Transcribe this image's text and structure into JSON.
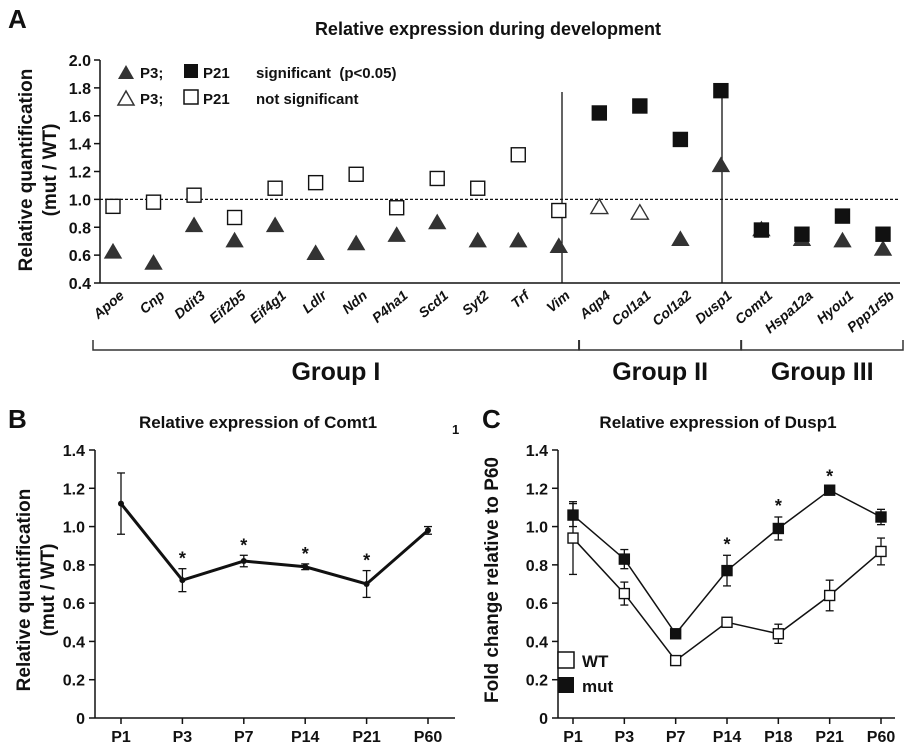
{
  "chart_data": [
    {
      "panel": "A",
      "type": "scatter",
      "title": "Relative expression during development",
      "ylabel_line1": "Relative quantification",
      "ylabel_line2": "(mut / WT)",
      "ylim": [
        0.4,
        2.0
      ],
      "yticks": [
        "0.4",
        "0.6",
        "0.8",
        "1.0",
        "1.2",
        "1.4",
        "1.6",
        "1.8",
        "2.0"
      ],
      "reference_line": 1.0,
      "legend": {
        "row1": {
          "p3": "P3;",
          "p21": "P21",
          "note": "significant  (p<0.05)"
        },
        "row2": {
          "p3": "P3;",
          "p21": "P21",
          "note": "not significant"
        }
      },
      "genes": [
        "Apoe",
        "Cnp",
        "Ddit3",
        "Eif2b5",
        "Eif4g1",
        "Ldlr",
        "Ndn",
        "P4ha1",
        "Scd1",
        "Syt2",
        "Trf",
        "Vim",
        "Aqp4",
        "Col1a1",
        "Col1a2",
        "Dusp1",
        "Comt1",
        "Hspa12a",
        "Hyou1",
        "Ppp1r5b"
      ],
      "p3": [
        0.63,
        0.55,
        0.82,
        0.71,
        0.82,
        0.62,
        0.69,
        0.75,
        0.84,
        0.71,
        0.71,
        0.67,
        0.95,
        0.91,
        0.72,
        1.25,
        0.79,
        0.72,
        0.71,
        0.65
      ],
      "p3_significant": [
        true,
        true,
        true,
        true,
        true,
        true,
        true,
        true,
        true,
        true,
        true,
        true,
        false,
        false,
        true,
        true,
        true,
        true,
        true,
        true
      ],
      "p21": [
        0.95,
        0.98,
        1.03,
        0.87,
        1.08,
        1.12,
        1.18,
        0.94,
        1.15,
        1.08,
        1.32,
        0.92,
        1.62,
        1.67,
        1.43,
        1.78,
        0.78,
        0.75,
        0.88,
        0.75
      ],
      "p21_significant": [
        false,
        false,
        false,
        false,
        false,
        false,
        false,
        false,
        false,
        false,
        false,
        false,
        true,
        true,
        true,
        true,
        true,
        true,
        true,
        true
      ],
      "groups": [
        {
          "label": "Group I",
          "from": 0,
          "to": 11
        },
        {
          "label": "Group II",
          "from": 12,
          "to": 15
        },
        {
          "label": "Group III",
          "from": 16,
          "to": 19
        }
      ]
    },
    {
      "panel": "B",
      "type": "line",
      "title": "Relative expression of Comt1",
      "corner_mark": "1",
      "ylabel_line1": "Relative quantification",
      "ylabel_line2": "(mut / WT)",
      "ylim": [
        0,
        1.4
      ],
      "yticks": [
        "0",
        "0.2",
        "0.4",
        "0.6",
        "0.8",
        "1.0",
        "1.2",
        "1.4"
      ],
      "categories": [
        "P1",
        "P3",
        "P7",
        "P14",
        "P21",
        "P60"
      ],
      "values": [
        1.12,
        0.72,
        0.82,
        0.79,
        0.7,
        0.98
      ],
      "errors": [
        0.16,
        0.06,
        0.03,
        0.015,
        0.07,
        0.02
      ],
      "significant": [
        false,
        true,
        true,
        true,
        true,
        false
      ],
      "asterisk": "*"
    },
    {
      "panel": "C",
      "type": "line",
      "title": "Relative expression of Dusp1",
      "ylabel": "Fold change relative to P60",
      "ylim": [
        0,
        1.4
      ],
      "yticks": [
        "0",
        "0.2",
        "0.4",
        "0.6",
        "0.8",
        "1.0",
        "1.2",
        "1.4"
      ],
      "categories": [
        "P1",
        "P3",
        "P7",
        "P14",
        "P18",
        "P21",
        "P60"
      ],
      "series": [
        {
          "name": "WT",
          "values": [
            0.94,
            0.65,
            0.3,
            0.5,
            0.44,
            0.64,
            0.87
          ],
          "errors": [
            0.19,
            0.06,
            0.015,
            0.015,
            0.05,
            0.08,
            0.07
          ]
        },
        {
          "name": "mut",
          "values": [
            1.06,
            0.83,
            0.44,
            0.77,
            0.99,
            1.19,
            1.05
          ],
          "errors": [
            0.06,
            0.05,
            0.015,
            0.08,
            0.06,
            0.015,
            0.04
          ]
        }
      ],
      "significant": [
        false,
        false,
        false,
        true,
        true,
        true,
        false
      ],
      "asterisk": "*"
    }
  ],
  "panel_letters": [
    "A",
    "B",
    "C"
  ]
}
